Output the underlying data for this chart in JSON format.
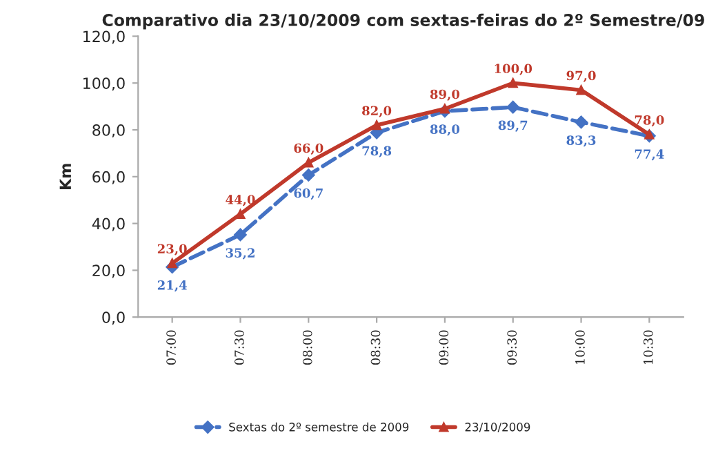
{
  "chart_data": {
    "type": "line",
    "title": "Comparativo dia 23/10/2009 com sextas-feiras do 2º Semestre/09",
    "ylabel": "Km",
    "categories": [
      "07:00",
      "07:30",
      "08:00",
      "08:30",
      "09:00",
      "09:30",
      "10:00",
      "10:30"
    ],
    "series": [
      {
        "name": "Sextas do 2º semestre de 2009",
        "color": "#4472c4",
        "marker": "diamond",
        "line_style": "dashed",
        "values": [
          21.4,
          35.2,
          60.7,
          78.8,
          88.0,
          89.7,
          83.3,
          77.4
        ],
        "value_labels": [
          "21,4",
          "35,2",
          "60,7",
          "78,8",
          "88,0",
          "89,7",
          "83,3",
          "77,4"
        ]
      },
      {
        "name": "23/10/2009",
        "color": "#c0392b",
        "marker": "triangle",
        "line_style": "solid",
        "values": [
          23,
          44,
          66,
          82,
          89,
          100,
          97,
          78
        ],
        "value_labels": [
          "23,0",
          "44,0",
          "66,0",
          "82,0",
          "89,0",
          "100,0",
          "97,0",
          "78,0"
        ]
      }
    ],
    "ylim": [
      0,
      120
    ],
    "yticks": [
      {
        "value": 0,
        "label": "0,0"
      },
      {
        "value": 20,
        "label": "20,0"
      },
      {
        "value": 40,
        "label": "40,0"
      },
      {
        "value": 60,
        "label": "60,0"
      },
      {
        "value": 80,
        "label": "80,0"
      },
      {
        "value": 100,
        "label": "100,0"
      },
      {
        "value": 120,
        "label": "120,0"
      }
    ],
    "grid": false,
    "legend": "bottom"
  }
}
